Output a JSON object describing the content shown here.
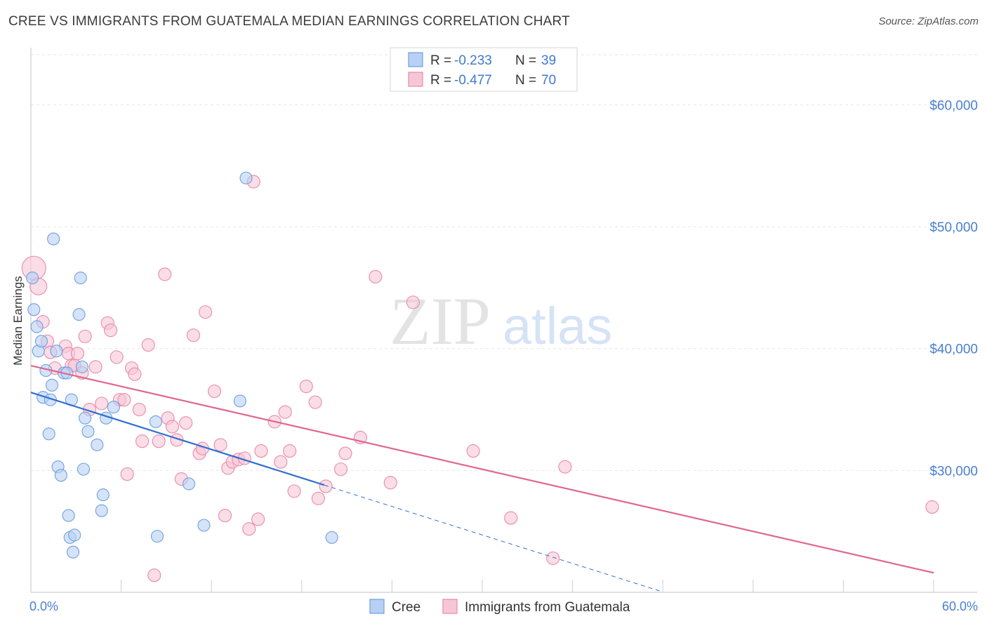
{
  "title": "CREE VS IMMIGRANTS FROM GUATEMALA MEDIAN EARNINGS CORRELATION CHART",
  "source": "Source: ZipAtlas.com",
  "watermark": {
    "zip": "ZIP",
    "atlas": "atlas"
  },
  "colors": {
    "cree": "#6fa0e0",
    "cree_fill": "#b7d0f3",
    "cree_line": "#2f6fd0",
    "guat": "#e98aaa",
    "guat_fill": "#f7c6d6",
    "guat_line": "#e06690",
    "tick": "#4a7fd1"
  },
  "legend": {
    "items": [
      {
        "r_label": "R =",
        "r_value": "-0.233",
        "n_label": "N =",
        "n_value": "39"
      },
      {
        "r_label": "R =",
        "r_value": "-0.477",
        "n_label": "N =",
        "n_value": "70"
      }
    ]
  },
  "bottom_legend": {
    "cree": "Cree",
    "guat": "Immigrants from Guatemala"
  },
  "chart_data": {
    "type": "scatter",
    "ylabel": "Median Earnings",
    "x_tick_labels": [
      "0.0%",
      "60.0%"
    ],
    "y_tick_labels": [
      "$60,000",
      "$50,000",
      "$40,000",
      "$30,000"
    ],
    "y_ticks": [
      60000,
      50000,
      40000,
      30000
    ],
    "xlim": [
      0,
      60
    ],
    "ylim": [
      20000,
      64000
    ],
    "grid": true,
    "series": [
      {
        "name": "Cree",
        "points": [
          [
            0.1,
            45800
          ],
          [
            0.2,
            43200
          ],
          [
            0.4,
            41800
          ],
          [
            0.5,
            39800
          ],
          [
            0.7,
            40600
          ],
          [
            0.8,
            36000
          ],
          [
            1.0,
            38200
          ],
          [
            1.2,
            33000
          ],
          [
            1.3,
            35800
          ],
          [
            1.4,
            37000
          ],
          [
            1.5,
            49000
          ],
          [
            1.7,
            39800
          ],
          [
            1.8,
            30300
          ],
          [
            2.0,
            29600
          ],
          [
            2.2,
            38000
          ],
          [
            2.4,
            38000
          ],
          [
            2.5,
            26300
          ],
          [
            2.6,
            24500
          ],
          [
            2.7,
            35800
          ],
          [
            2.8,
            23300
          ],
          [
            2.9,
            24700
          ],
          [
            3.2,
            42800
          ],
          [
            3.3,
            45800
          ],
          [
            3.4,
            38500
          ],
          [
            3.5,
            30100
          ],
          [
            3.6,
            34300
          ],
          [
            3.8,
            33200
          ],
          [
            4.4,
            32100
          ],
          [
            4.7,
            26700
          ],
          [
            4.8,
            28000
          ],
          [
            5.0,
            34300
          ],
          [
            5.5,
            35200
          ],
          [
            8.3,
            34000
          ],
          [
            8.4,
            24600
          ],
          [
            10.5,
            28900
          ],
          [
            11.5,
            25500
          ],
          [
            13.9,
            35700
          ],
          [
            14.3,
            54000
          ],
          [
            20.0,
            24500
          ]
        ]
      },
      {
        "name": "Immigrants from Guatemala",
        "points": [
          [
            0.2,
            46600
          ],
          [
            0.5,
            45100
          ],
          [
            0.8,
            42200
          ],
          [
            1.1,
            40600
          ],
          [
            1.3,
            39700
          ],
          [
            1.6,
            38400
          ],
          [
            2.3,
            40200
          ],
          [
            2.5,
            39600
          ],
          [
            2.7,
            38600
          ],
          [
            2.9,
            38600
          ],
          [
            3.1,
            39600
          ],
          [
            3.4,
            38000
          ],
          [
            3.6,
            41000
          ],
          [
            3.9,
            35000
          ],
          [
            4.3,
            38500
          ],
          [
            4.7,
            35500
          ],
          [
            5.1,
            42100
          ],
          [
            5.3,
            41500
          ],
          [
            5.7,
            39300
          ],
          [
            5.9,
            35800
          ],
          [
            6.2,
            35800
          ],
          [
            6.4,
            29700
          ],
          [
            6.7,
            38400
          ],
          [
            6.9,
            37900
          ],
          [
            7.2,
            35000
          ],
          [
            7.4,
            32400
          ],
          [
            7.8,
            40300
          ],
          [
            8.2,
            21400
          ],
          [
            8.5,
            32400
          ],
          [
            8.9,
            46100
          ],
          [
            9.1,
            34300
          ],
          [
            9.4,
            33600
          ],
          [
            9.7,
            32500
          ],
          [
            10.0,
            29300
          ],
          [
            10.3,
            33900
          ],
          [
            10.8,
            41100
          ],
          [
            11.2,
            31400
          ],
          [
            11.4,
            31800
          ],
          [
            11.6,
            43000
          ],
          [
            12.2,
            36500
          ],
          [
            12.6,
            32100
          ],
          [
            12.9,
            26300
          ],
          [
            13.1,
            30200
          ],
          [
            13.4,
            30700
          ],
          [
            13.8,
            30900
          ],
          [
            14.2,
            31000
          ],
          [
            14.5,
            25200
          ],
          [
            14.8,
            53700
          ],
          [
            15.1,
            26000
          ],
          [
            15.3,
            31600
          ],
          [
            16.2,
            34000
          ],
          [
            16.6,
            30700
          ],
          [
            16.9,
            34800
          ],
          [
            17.2,
            31600
          ],
          [
            17.5,
            28300
          ],
          [
            18.3,
            36900
          ],
          [
            18.9,
            35600
          ],
          [
            19.1,
            27700
          ],
          [
            19.6,
            28700
          ],
          [
            20.6,
            30100
          ],
          [
            20.9,
            31400
          ],
          [
            21.9,
            32700
          ],
          [
            22.9,
            45900
          ],
          [
            23.9,
            29000
          ],
          [
            25.4,
            43800
          ],
          [
            29.4,
            31600
          ],
          [
            31.9,
            26100
          ],
          [
            34.7,
            22800
          ],
          [
            35.5,
            30300
          ],
          [
            59.9,
            27000
          ]
        ]
      }
    ],
    "trend_lines": [
      {
        "series": "Cree",
        "x": [
          0,
          19.5
        ],
        "y": [
          36400,
          28800
        ],
        "dashed_extension_x": [
          19.5,
          42
        ]
      },
      {
        "series": "Immigrants from Guatemala",
        "x": [
          0,
          60
        ],
        "y": [
          38600,
          21600
        ]
      }
    ]
  }
}
